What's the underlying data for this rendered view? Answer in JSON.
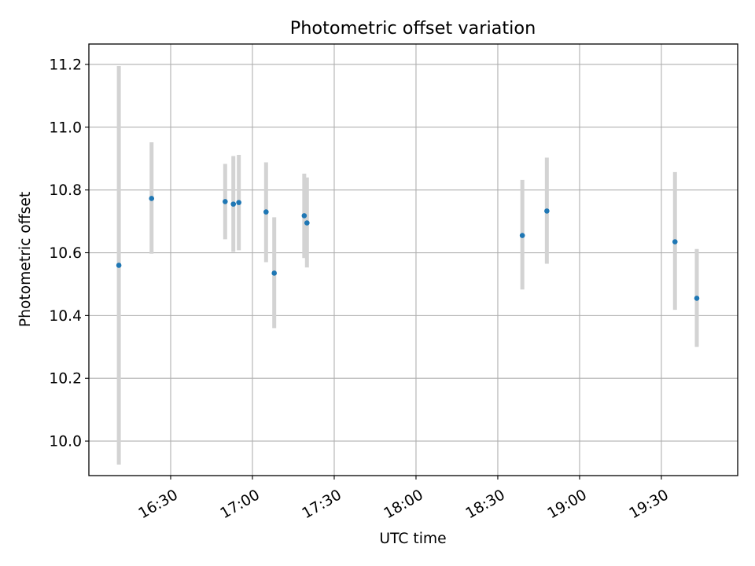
{
  "chart_data": {
    "type": "scatter",
    "title": "Photometric offset variation",
    "xlabel": "UTC time",
    "ylabel": "Photometric offset",
    "x_unit": "UTC clock time (hh:mm)",
    "xlim": [
      "16:00",
      "19:58"
    ],
    "ylim": [
      9.89,
      11.265
    ],
    "x_ticks": [
      "16:30",
      "17:00",
      "17:30",
      "18:00",
      "18:30",
      "19:00",
      "19:30"
    ],
    "y_ticks": [
      "10.0",
      "10.2",
      "10.4",
      "10.6",
      "10.8",
      "11.0",
      "11.2"
    ],
    "grid": true,
    "legend": "none",
    "errorbar_color": "#d3d3d3",
    "point_color": "#1f77b4",
    "points": [
      {
        "x": "16:11",
        "y": 10.56,
        "yerr_low": 9.925,
        "yerr_high": 11.195
      },
      {
        "x": "16:23",
        "y": 10.773,
        "yerr_low": 10.597,
        "yerr_high": 10.952
      },
      {
        "x": "16:50",
        "y": 10.763,
        "yerr_low": 10.643,
        "yerr_high": 10.883
      },
      {
        "x": "16:53",
        "y": 10.755,
        "yerr_low": 10.603,
        "yerr_high": 10.908
      },
      {
        "x": "16:55",
        "y": 10.76,
        "yerr_low": 10.608,
        "yerr_high": 10.912
      },
      {
        "x": "17:05",
        "y": 10.73,
        "yerr_low": 10.57,
        "yerr_high": 10.888
      },
      {
        "x": "17:08",
        "y": 10.535,
        "yerr_low": 10.36,
        "yerr_high": 10.713
      },
      {
        "x": "17:19",
        "y": 10.718,
        "yerr_low": 10.583,
        "yerr_high": 10.852
      },
      {
        "x": "17:20",
        "y": 10.695,
        "yerr_low": 10.553,
        "yerr_high": 10.84
      },
      {
        "x": "18:39",
        "y": 10.655,
        "yerr_low": 10.483,
        "yerr_high": 10.832
      },
      {
        "x": "18:48",
        "y": 10.733,
        "yerr_low": 10.565,
        "yerr_high": 10.903
      },
      {
        "x": "19:35",
        "y": 10.635,
        "yerr_low": 10.418,
        "yerr_high": 10.857
      },
      {
        "x": "19:43",
        "y": 10.455,
        "yerr_low": 10.3,
        "yerr_high": 10.612
      }
    ]
  }
}
